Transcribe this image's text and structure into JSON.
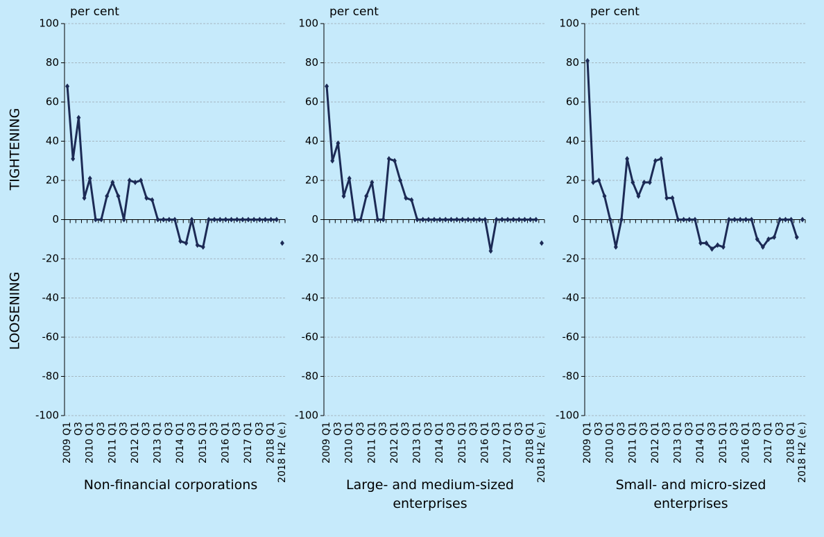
{
  "chart_data": [
    {
      "type": "line",
      "title": "Non-financial corporations",
      "unit": "per cent",
      "annotations": [
        "TIGHTENING",
        "LOOSENING"
      ],
      "categories": [
        "2009 Q1",
        null,
        "Q3",
        null,
        "2010 Q1",
        null,
        "Q3",
        null,
        "2011 Q1",
        null,
        "Q3",
        null,
        "2012 Q1",
        null,
        "Q3",
        null,
        "2013 Q1",
        null,
        "Q3",
        null,
        "2014 Q1",
        null,
        "Q3",
        null,
        "2015 Q1",
        null,
        "Q3",
        null,
        "2016 Q1",
        null,
        "Q3",
        null,
        "2017 Q1",
        null,
        "Q3",
        null,
        "2018 Q1",
        null,
        "2018 H2 (e.)"
      ],
      "series": [
        {
          "color": "#1c2a55",
          "values": [
            68,
            31,
            52,
            11,
            21,
            0,
            0,
            12,
            19,
            12,
            0,
            20,
            19,
            20,
            11,
            10,
            0,
            0,
            0,
            0,
            -11,
            -12,
            0,
            -13,
            -14,
            0,
            0,
            0,
            0,
            0,
            0,
            0,
            0,
            0,
            0,
            0,
            0,
            0,
            null
          ]
        },
        {
          "color": "#1c2a55",
          "values": [
            null,
            null,
            null,
            null,
            null,
            null,
            null,
            null,
            null,
            null,
            null,
            null,
            null,
            null,
            null,
            null,
            null,
            null,
            null,
            null,
            null,
            null,
            null,
            null,
            null,
            null,
            null,
            null,
            null,
            null,
            null,
            null,
            null,
            null,
            null,
            null,
            null,
            null,
            -12
          ]
        }
      ],
      "ylim": [
        -100,
        100
      ],
      "yticks": [
        -100,
        -80,
        -60,
        -40,
        -20,
        0,
        20,
        40,
        60,
        80,
        100
      ],
      "grid": true
    },
    {
      "type": "line",
      "title": "Large- and medium-sized enterprises",
      "unit": "per cent",
      "categories": [
        "2009 Q1",
        null,
        "Q3",
        null,
        "2010 Q1",
        null,
        "Q3",
        null,
        "2011 Q1",
        null,
        "Q3",
        null,
        "2012 Q1",
        null,
        "Q3",
        null,
        "2013 Q1",
        null,
        "Q3",
        null,
        "2014 Q1",
        null,
        "Q3",
        null,
        "2015 Q1",
        null,
        "Q3",
        null,
        "2016 Q1",
        null,
        "Q3",
        null,
        "2017 Q1",
        null,
        "Q3",
        null,
        "2018 Q1",
        null,
        "2018 H2 (e.)"
      ],
      "series": [
        {
          "color": "#1c2a55",
          "values": [
            68,
            30,
            39,
            12,
            21,
            0,
            0,
            12,
            19,
            0,
            0,
            31,
            30,
            20,
            11,
            10,
            0,
            0,
            0,
            0,
            0,
            0,
            0,
            0,
            0,
            0,
            0,
            0,
            0,
            -16,
            0,
            0,
            0,
            0,
            0,
            0,
            0,
            0,
            null
          ]
        },
        {
          "color": "#1c2a55",
          "values": [
            null,
            null,
            null,
            null,
            null,
            null,
            null,
            null,
            null,
            null,
            null,
            null,
            null,
            null,
            null,
            null,
            null,
            null,
            null,
            null,
            null,
            null,
            null,
            null,
            null,
            null,
            null,
            null,
            null,
            null,
            null,
            null,
            null,
            null,
            null,
            null,
            null,
            null,
            -12
          ]
        }
      ],
      "ylim": [
        -100,
        100
      ],
      "yticks": [
        -100,
        -80,
        -60,
        -40,
        -20,
        0,
        20,
        40,
        60,
        80,
        100
      ],
      "grid": true
    },
    {
      "type": "line",
      "title": "Small- and micro-sized enterprises",
      "unit": "per cent",
      "categories": [
        "2009 Q1",
        null,
        "Q3",
        null,
        "2010 Q1",
        null,
        "Q3",
        null,
        "2011 Q1",
        null,
        "Q3",
        null,
        "2012 Q1",
        null,
        "Q3",
        null,
        "2013 Q1",
        null,
        "Q3",
        null,
        "2014 Q1",
        null,
        "Q3",
        null,
        "2015 Q1",
        null,
        "Q3",
        null,
        "2016 Q1",
        null,
        "Q3",
        null,
        "2017 Q1",
        null,
        "Q3",
        null,
        "2018 Q1",
        null,
        "2018 H2 (e.)"
      ],
      "series": [
        {
          "color": "#1c2a55",
          "values": [
            81,
            19,
            20,
            12,
            0,
            -14,
            0,
            31,
            19,
            12,
            19,
            19,
            30,
            31,
            11,
            11,
            0,
            0,
            0,
            0,
            -12,
            -12,
            -15,
            -13,
            -14,
            0,
            0,
            0,
            0,
            0,
            -10,
            -14,
            -10,
            -9,
            0,
            0,
            0,
            -9,
            null
          ]
        },
        {
          "color": "#1c2a55",
          "values": [
            null,
            null,
            null,
            null,
            null,
            null,
            null,
            null,
            null,
            null,
            null,
            null,
            null,
            null,
            null,
            null,
            null,
            null,
            null,
            null,
            null,
            null,
            null,
            null,
            null,
            null,
            null,
            null,
            null,
            null,
            null,
            null,
            null,
            null,
            null,
            null,
            null,
            null,
            0
          ]
        }
      ],
      "ylim": [
        -100,
        100
      ],
      "yticks": [
        -100,
        -80,
        -60,
        -40,
        -20,
        0,
        20,
        40,
        60,
        80,
        100
      ],
      "grid": true
    }
  ]
}
